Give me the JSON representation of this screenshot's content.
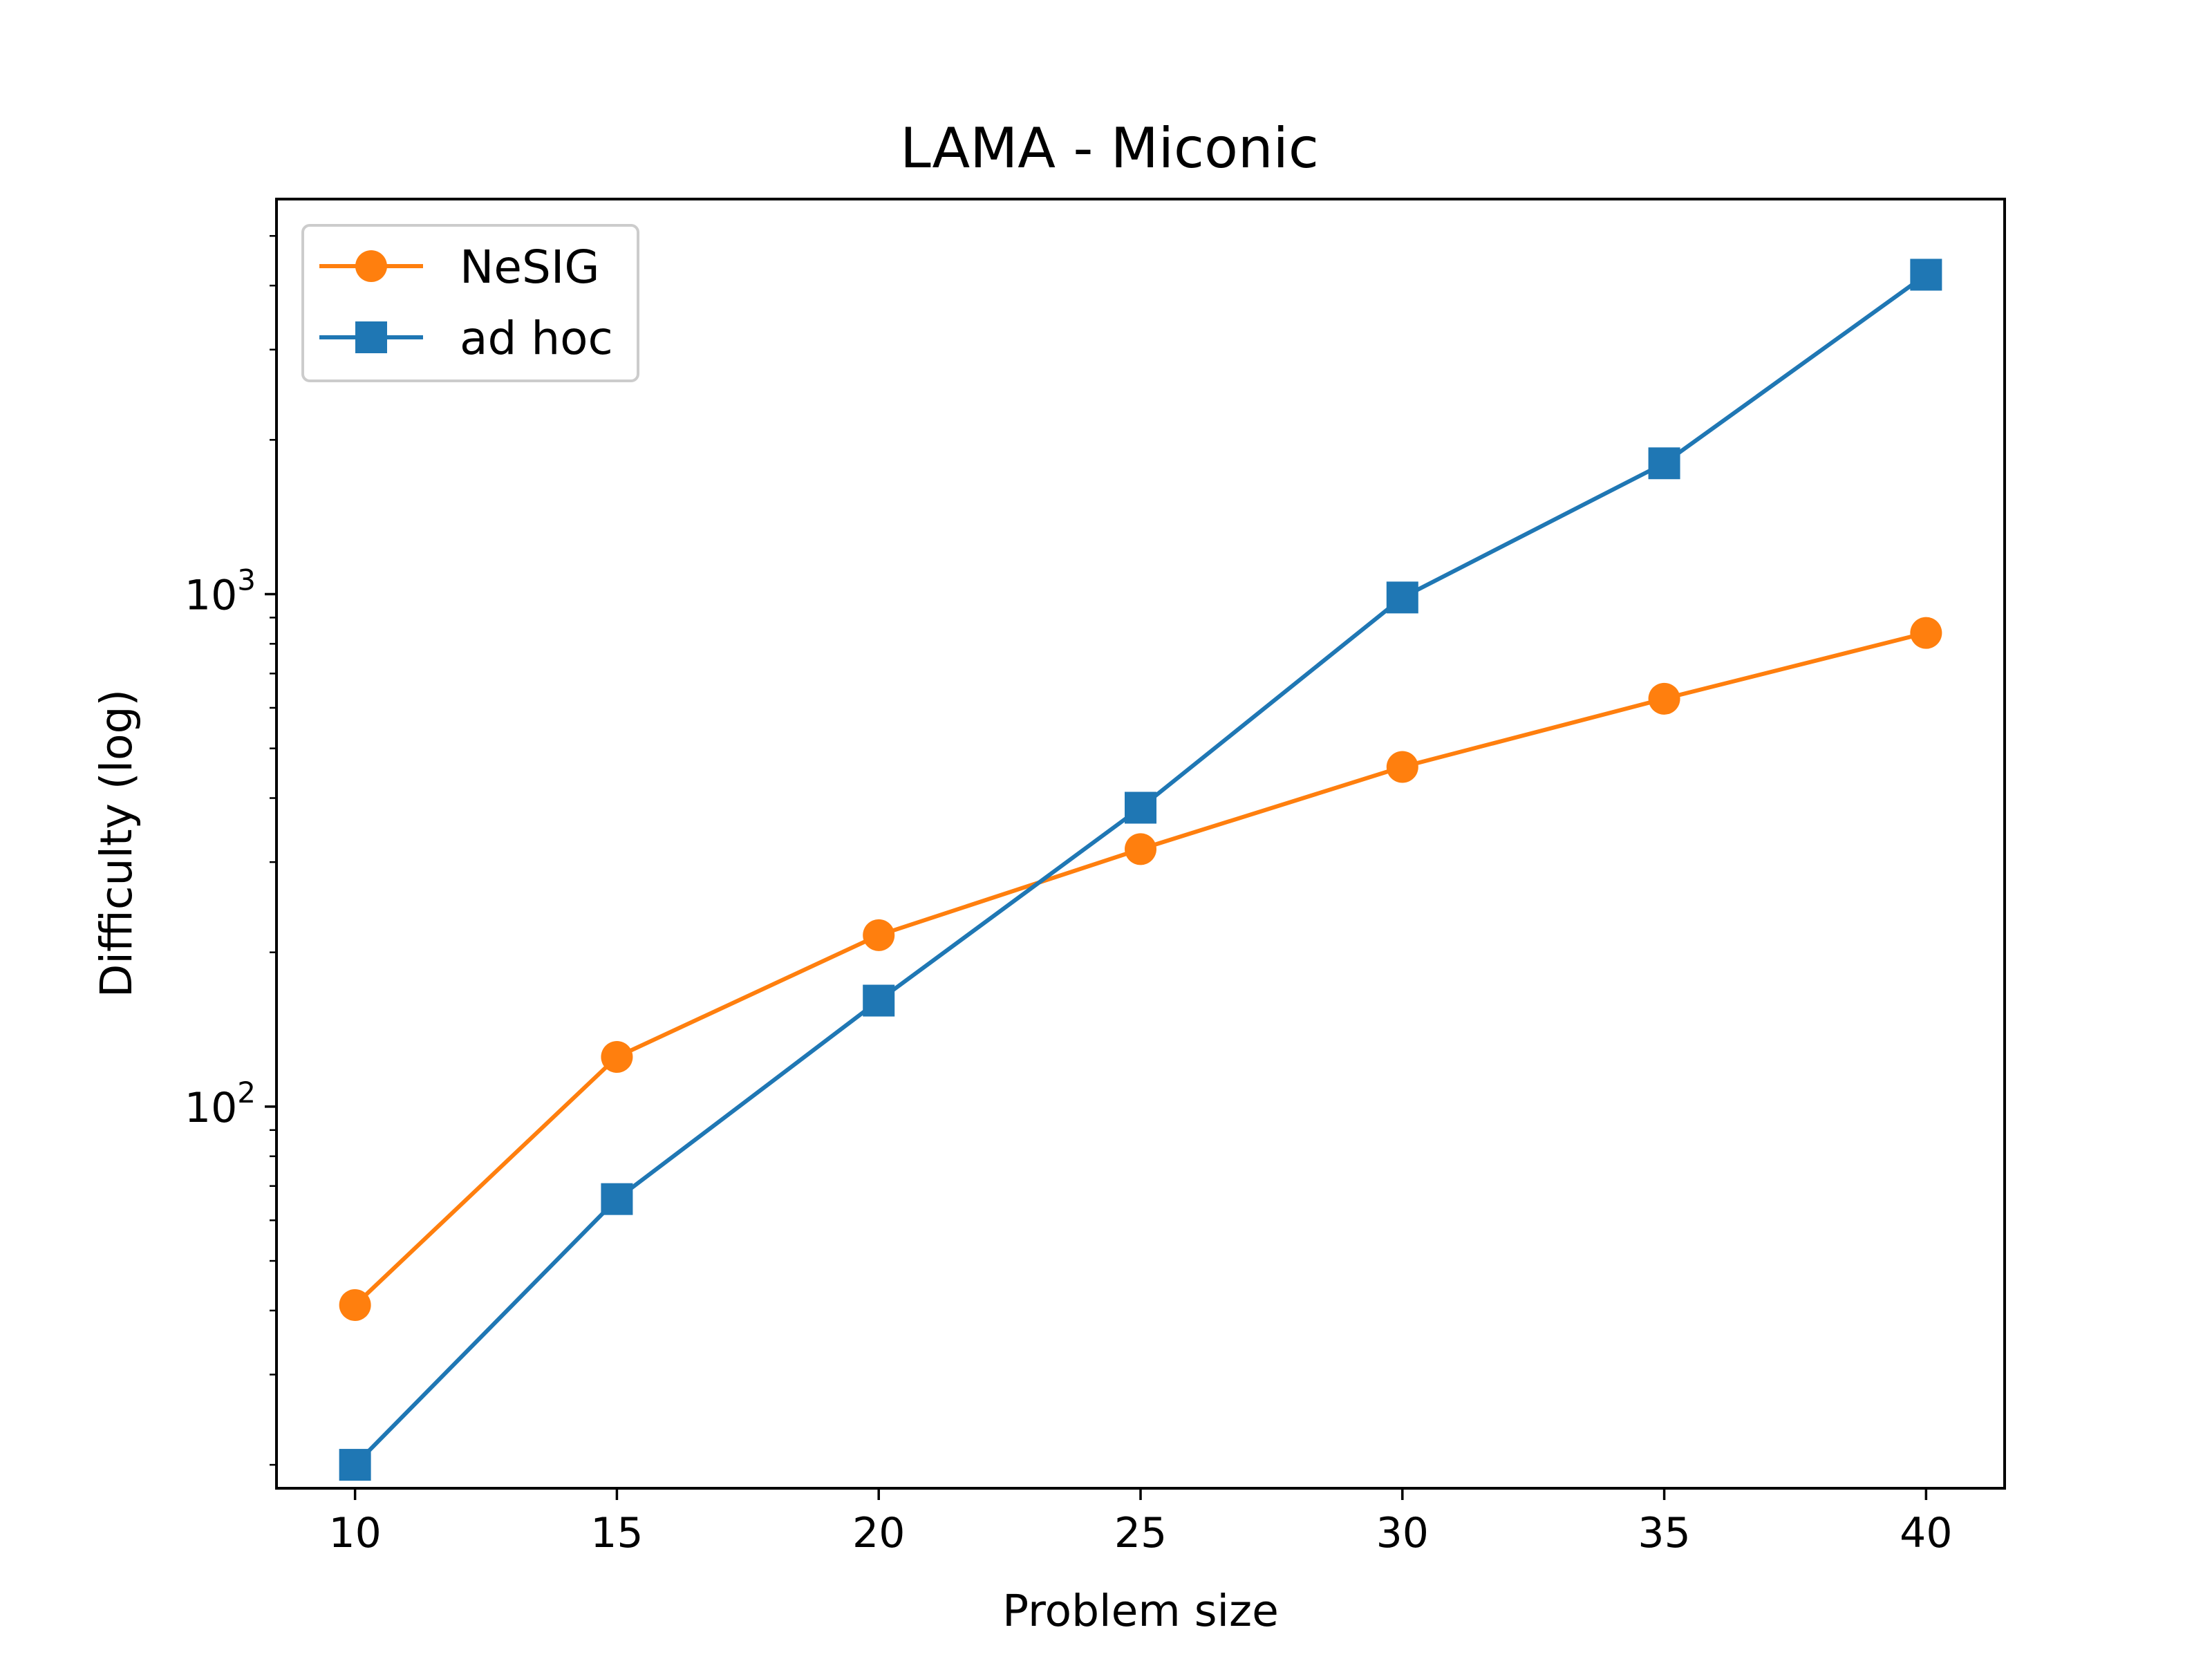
{
  "chart_data": {
    "type": "line",
    "title": "LAMA - Miconic",
    "xlabel": "Problem size",
    "ylabel": "Difficulty (log)",
    "yscale": "log",
    "x": [
      10,
      15,
      20,
      25,
      30,
      35,
      40
    ],
    "xlim": [
      8.5,
      41.5
    ],
    "ylim": [
      18,
      5900
    ],
    "xticks": [
      10,
      15,
      20,
      25,
      30,
      35,
      40
    ],
    "xtick_labels": [
      "10",
      "15",
      "20",
      "25",
      "30",
      "35",
      "40"
    ],
    "yticks_major": [
      {
        "value": 100,
        "base": "10",
        "exp": "2"
      },
      {
        "value": 1000,
        "base": "10",
        "exp": "3"
      }
    ],
    "yticks_minor": [
      20,
      30,
      40,
      50,
      60,
      70,
      80,
      90,
      200,
      300,
      400,
      500,
      600,
      700,
      800,
      900,
      2000,
      3000,
      4000,
      5000
    ],
    "legend_position": "top-left",
    "series": [
      {
        "name": "NeSIG",
        "color": "#ff7f0e",
        "marker": "circle",
        "values": [
          41,
          125,
          216,
          318,
          460,
          625,
          840
        ]
      },
      {
        "name": "ad hoc",
        "color": "#1f77b4",
        "marker": "square",
        "values": [
          20,
          66,
          161,
          383,
          985,
          1800,
          4200
        ]
      }
    ]
  }
}
